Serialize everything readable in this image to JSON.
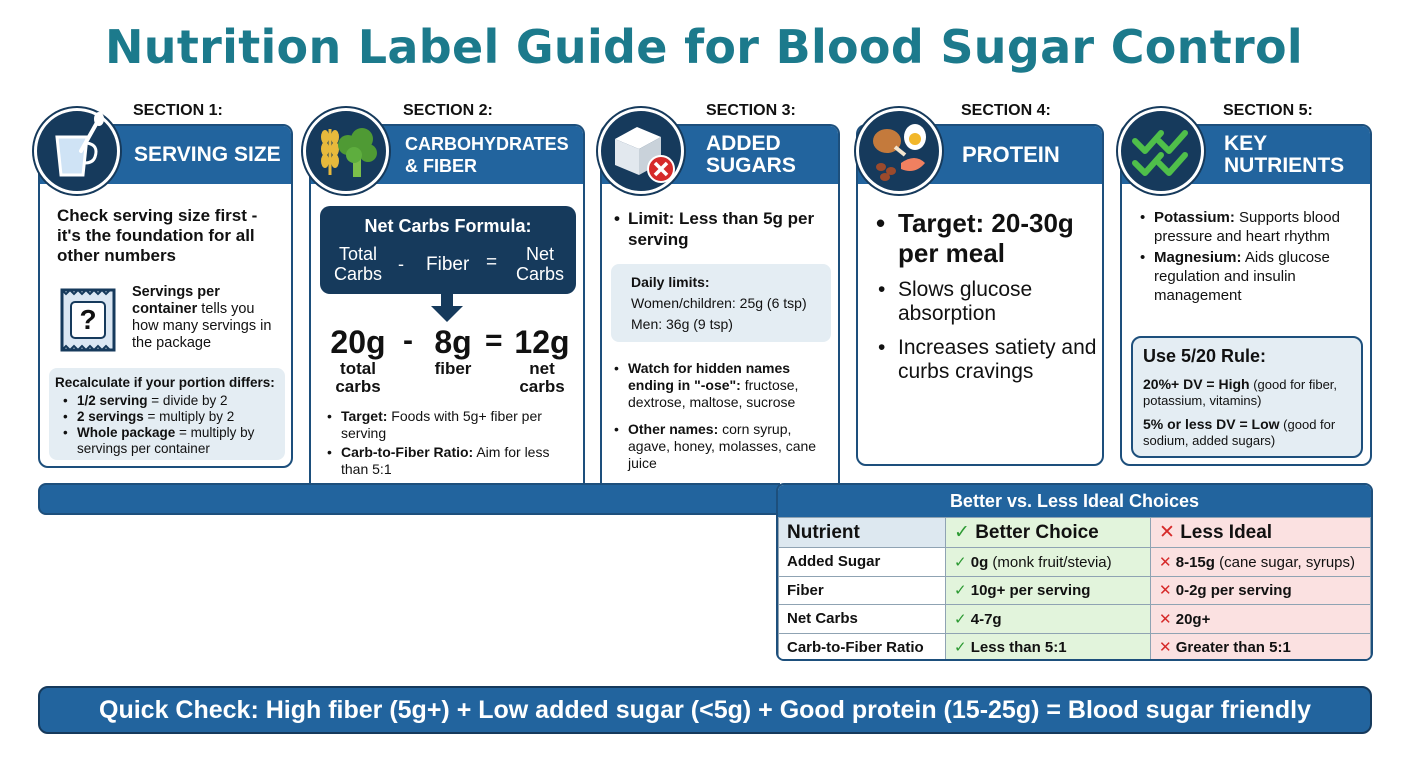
{
  "title": "Nutrition Label Guide for Blood Sugar Control",
  "sections": {
    "s1": {
      "label": "SECTION 1:",
      "header": "SERVING SIZE",
      "intro": "Check serving size first - it's the foundation for all other numbers",
      "package_glyph": "?",
      "spc_bold": "Servings per container",
      "spc_rest": " tells you how many servings in the package",
      "recalc_title": "Recalculate if your portion differs:",
      "recalc": [
        {
          "bold": "1/2 serving",
          "rest": " = divide by 2"
        },
        {
          "bold": "2 servings",
          "rest": " = multiply by 2"
        },
        {
          "bold": "Whole package",
          "rest": " = multiply by servings per container"
        }
      ]
    },
    "s2": {
      "label": "SECTION 2:",
      "header_line1": "CARBOHYDRATES",
      "header_line2": "& FIBER",
      "formula_title": "Net Carbs Formula:",
      "f_total": "Total Carbs",
      "f_minus": "-",
      "f_fiber": "Fiber",
      "f_eq": "=",
      "f_net": "Net Carbs",
      "ex_total": "20g",
      "ex_total_label": "total carbs",
      "ex_minus": "-",
      "ex_fiber": "8g",
      "ex_fiber_label": "fiber",
      "ex_eq": "=",
      "ex_net": "12g",
      "ex_net_label": "net carbs",
      "bullets": [
        {
          "bold": "Target:",
          "rest": " Foods with 5g+ fiber per serving"
        },
        {
          "bold": "Carb-to-Fiber Ratio:",
          "rest": " Aim for less than 5:1"
        }
      ]
    },
    "s3": {
      "label": "SECTION 3:",
      "header_line1": "ADDED",
      "header_line2": "SUGARS",
      "limit": "Limit: Less than 5g per serving",
      "daily_title": "Daily limits:",
      "daily_women": "Women/children: 25g (6 tsp)",
      "daily_men": "Men: 36g (9 tsp)",
      "bullets": [
        {
          "bold": "Watch for hidden names ending in \"-ose\":",
          "rest": " fructose, dextrose, maltose, sucrose"
        },
        {
          "bold": "Other names:",
          "rest": " corn syrup, agave, honey, molasses, cane juice"
        }
      ]
    },
    "s4": {
      "label": "SECTION 4:",
      "header": "PROTEIN",
      "target": "Target: 20-30g per meal",
      "bullets": [
        "Slows glucose absorption",
        "Increases satiety and curbs cravings"
      ]
    },
    "s5": {
      "label": "SECTION 5:",
      "header_line1": "KEY",
      "header_line2": "NUTRIENTS",
      "bullets": [
        {
          "bold": "Potassium:",
          "rest": " Supports blood pressure and heart rhythm"
        },
        {
          "bold": "Magnesium:",
          "rest": " Aids glucose regulation and insulin management"
        }
      ],
      "rule_title": "Use 5/20 Rule:",
      "rule_high_bold": "20%+ DV = High",
      "rule_high_rest": " (good for fiber, potassium, vitamins)",
      "rule_low_bold": "5% or less DV = Low",
      "rule_low_rest": " (good for sodium, added sugars)"
    }
  },
  "choices": {
    "title": "Better vs. Less Ideal Choices",
    "head": {
      "nutrient": "Nutrient",
      "better": "Better Choice",
      "less": "Less Ideal"
    },
    "rows": [
      {
        "nutrient": "Added Sugar",
        "better_bold": "0g",
        "better_rest": " (monk fruit/stevia)",
        "less_bold": "8-15g",
        "less_rest": " (cane sugar, syrups)"
      },
      {
        "nutrient": "Fiber",
        "better_bold": "10g+ per serving",
        "better_rest": "",
        "less_bold": "0-2g per serving",
        "less_rest": ""
      },
      {
        "nutrient": "Net Carbs",
        "better_bold": "4-7g",
        "better_rest": "",
        "less_bold": "20g+",
        "less_rest": ""
      },
      {
        "nutrient": "Carb-to-Fiber Ratio",
        "better_bold": "Less than 5:1",
        "better_rest": "",
        "less_bold": "Greater than 5:1",
        "less_rest": ""
      }
    ]
  },
  "quick_check": "Quick Check:  High fiber (5g+) + Low added sugar (<5g) + Good protein (15-25g) = Blood sugar friendly",
  "colors": {
    "teal_title": "#1c7a8c",
    "header_blue": "#22649e",
    "navy": "#163a5c",
    "check_green": "#2d9a33",
    "cross_red": "#d62a2a"
  },
  "icons": [
    "measuring-cup-icon",
    "grain-broccoli-icon",
    "sugar-cube-icon",
    "protein-foods-icon",
    "double-check-icon",
    "check-icon",
    "cross-icon",
    "arrow-down-icon"
  ]
}
